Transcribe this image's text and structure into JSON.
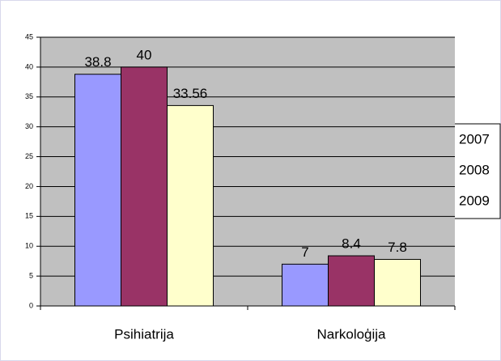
{
  "chart_data": {
    "type": "bar",
    "categories": [
      "Psihiatrija",
      "Narkoloģija"
    ],
    "series": [
      {
        "name": "2007",
        "color": "#9999ff",
        "values": [
          38.8,
          7
        ]
      },
      {
        "name": "2008",
        "color": "#993366",
        "values": [
          40,
          8.4
        ]
      },
      {
        "name": "2009",
        "color": "#ffffcc",
        "values": [
          33.56,
          7.8
        ]
      }
    ],
    "ylim": [
      0,
      45
    ],
    "yticks": [
      0,
      5,
      10,
      15,
      20,
      25,
      30,
      35,
      40,
      45
    ],
    "grid": true,
    "legend": "right",
    "plot_background": "#c0c0c0"
  }
}
